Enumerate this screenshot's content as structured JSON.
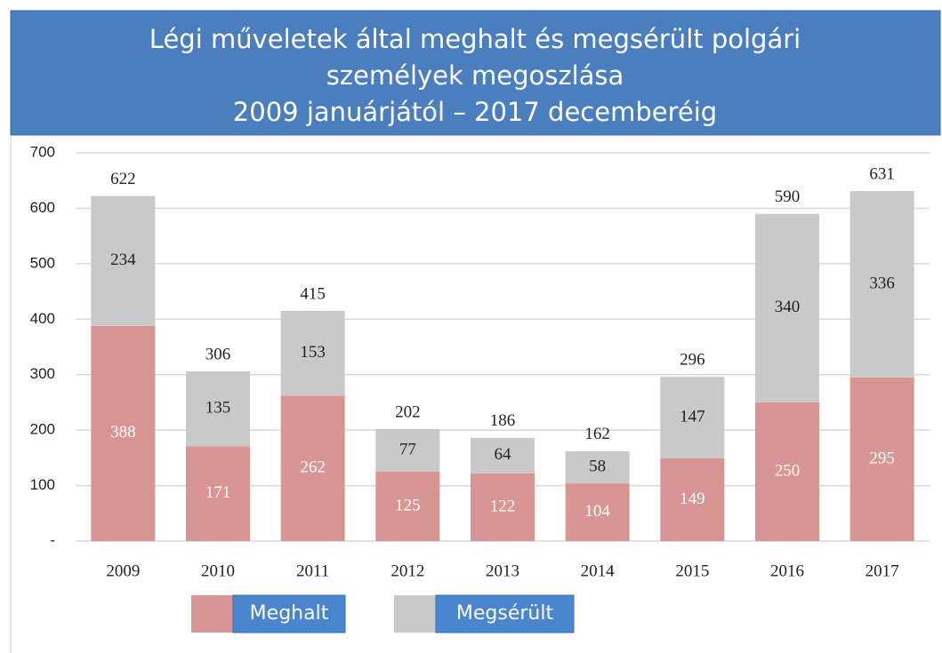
{
  "chart_data": {
    "type": "stacked_bar",
    "title": [
      "Légi műveletek által meghalt és megsérült polgári",
      "személyek megoszlása",
      "2009 januárjától – 2017 decemberéig"
    ],
    "categories": [
      "2009",
      "2010",
      "2011",
      "2012",
      "2013",
      "2014",
      "2015",
      "2016",
      "2017"
    ],
    "series": [
      {
        "name": "Meghalt",
        "color": "#d99594",
        "values": [
          388,
          171,
          262,
          125,
          122,
          104,
          149,
          250,
          295
        ]
      },
      {
        "name": "Megsérült",
        "color": "#c9c9c9",
        "values": [
          234,
          135,
          153,
          77,
          64,
          58,
          147,
          340,
          336
        ]
      }
    ],
    "totals": [
      622,
      306,
      415,
      202,
      186,
      162,
      296,
      590,
      631
    ],
    "ylim": [
      0,
      700
    ],
    "yticks": [
      {
        "value": 0,
        "label": "-"
      },
      100,
      200,
      300,
      400,
      500,
      600,
      700
    ],
    "grid": true
  }
}
